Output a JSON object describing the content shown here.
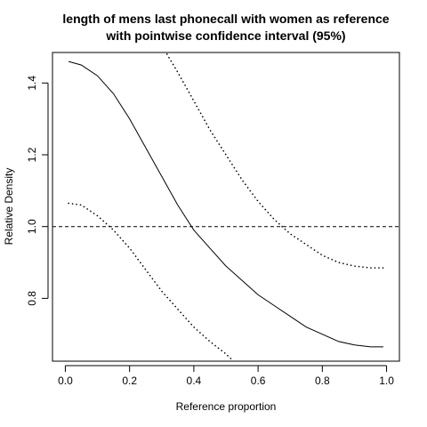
{
  "chart_data": {
    "type": "line",
    "title_lines": [
      "length of mens last phonecall with women as reference",
      "with pointwise confidence interval (95%)"
    ],
    "xlabel": "Reference proportion",
    "ylabel": "Relative Density",
    "xlim": [
      -0.04,
      1.04
    ],
    "ylim": [
      0.625,
      1.485
    ],
    "x_ticks": [
      0.0,
      0.2,
      0.4,
      0.6,
      0.8,
      1.0
    ],
    "x_tick_labels": [
      "0.0",
      "0.2",
      "0.4",
      "0.6",
      "0.8",
      "1.0"
    ],
    "y_ticks": [
      0.8,
      1.0,
      1.2,
      1.4
    ],
    "y_tick_labels": [
      "0.8",
      "1.0",
      "1.2",
      "1.4"
    ],
    "reference_line": {
      "y": 1.0,
      "style": "dashed"
    },
    "series": [
      {
        "role": "estimate",
        "style": "solid",
        "x": [
          0.01,
          0.05,
          0.1,
          0.15,
          0.2,
          0.25,
          0.3,
          0.35,
          0.4,
          0.45,
          0.5,
          0.55,
          0.6,
          0.65,
          0.7,
          0.75,
          0.8,
          0.85,
          0.9,
          0.95,
          0.99
        ],
        "y": [
          1.46,
          1.45,
          1.42,
          1.37,
          1.3,
          1.22,
          1.14,
          1.06,
          0.99,
          0.94,
          0.89,
          0.85,
          0.81,
          0.78,
          0.75,
          0.72,
          0.7,
          0.68,
          0.67,
          0.665,
          0.665
        ]
      },
      {
        "role": "upper_ci",
        "style": "dotted",
        "x": [
          0.31,
          0.35,
          0.4,
          0.45,
          0.5,
          0.55,
          0.6,
          0.65,
          0.7,
          0.75,
          0.8,
          0.85,
          0.9,
          0.95,
          0.99
        ],
        "y": [
          1.49,
          1.43,
          1.35,
          1.27,
          1.2,
          1.13,
          1.07,
          1.02,
          0.98,
          0.95,
          0.92,
          0.9,
          0.89,
          0.885,
          0.885
        ]
      },
      {
        "role": "lower_ci",
        "style": "dotted",
        "x": [
          0.01,
          0.05,
          0.1,
          0.15,
          0.2,
          0.25,
          0.3,
          0.35,
          0.4,
          0.45,
          0.5,
          0.52
        ],
        "y": [
          1.065,
          1.06,
          1.03,
          0.99,
          0.94,
          0.88,
          0.82,
          0.77,
          0.72,
          0.68,
          0.645,
          0.628
        ]
      }
    ],
    "grid": false,
    "legend": "none"
  }
}
